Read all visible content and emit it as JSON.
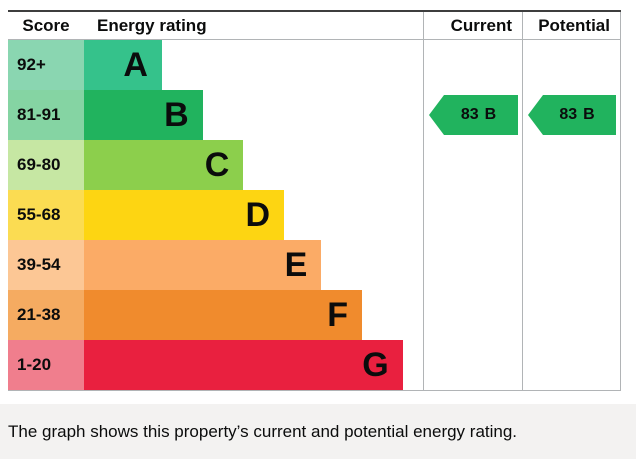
{
  "header": {
    "score": "Score",
    "energy_rating": "Energy rating",
    "current": "Current",
    "potential": "Potential"
  },
  "bands": [
    {
      "score_label": "92+",
      "letter": "A",
      "bar_color": "#35c28b",
      "score_color": "#8ad6b1",
      "width_pct": 23
    },
    {
      "score_label": "81-91",
      "letter": "B",
      "bar_color": "#21b35e",
      "score_color": "#85d4a3",
      "width_pct": 35
    },
    {
      "score_label": "69-80",
      "letter": "C",
      "bar_color": "#8ccf4c",
      "score_color": "#c6e7a3",
      "width_pct": 47
    },
    {
      "score_label": "55-68",
      "letter": "D",
      "bar_color": "#fdd512",
      "score_color": "#fbdc52",
      "width_pct": 59
    },
    {
      "score_label": "39-54",
      "letter": "E",
      "bar_color": "#fbab66",
      "score_color": "#fcc795",
      "width_pct": 70
    },
    {
      "score_label": "21-38",
      "letter": "F",
      "bar_color": "#f08b2d",
      "score_color": "#f5ab61",
      "width_pct": 82
    },
    {
      "score_label": "1-20",
      "letter": "G",
      "bar_color": "#e9203f",
      "score_color": "#f07e8d",
      "width_pct": 94
    }
  ],
  "ratings": {
    "current": {
      "score": "83",
      "band": "B",
      "arrow_color": "#21b35e"
    },
    "potential": {
      "score": "83",
      "band": "B",
      "arrow_color": "#21b35e"
    }
  },
  "caption": "The graph shows this property’s current and potential energy rating.",
  "chart_data": {
    "type": "bar",
    "orientation": "horizontal",
    "title": "Energy rating",
    "columns": [
      "Score",
      "Energy rating",
      "Current",
      "Potential"
    ],
    "categories": [
      "A",
      "B",
      "C",
      "D",
      "E",
      "F",
      "G"
    ],
    "score_ranges": [
      "92+",
      "81-91",
      "69-80",
      "55-68",
      "39-54",
      "21-38",
      "1-20"
    ],
    "values": [
      23,
      35,
      47,
      59,
      70,
      82,
      94
    ],
    "value_note": "relative bar length as percent of energy-rating column width",
    "band_colors": [
      "#35c28b",
      "#21b35e",
      "#8ccf4c",
      "#fdd512",
      "#fbab66",
      "#f08b2d",
      "#e9203f"
    ],
    "current": {
      "score": 83,
      "band": "B"
    },
    "potential": {
      "score": 83,
      "band": "B"
    },
    "legend": "none",
    "grid": "off"
  }
}
